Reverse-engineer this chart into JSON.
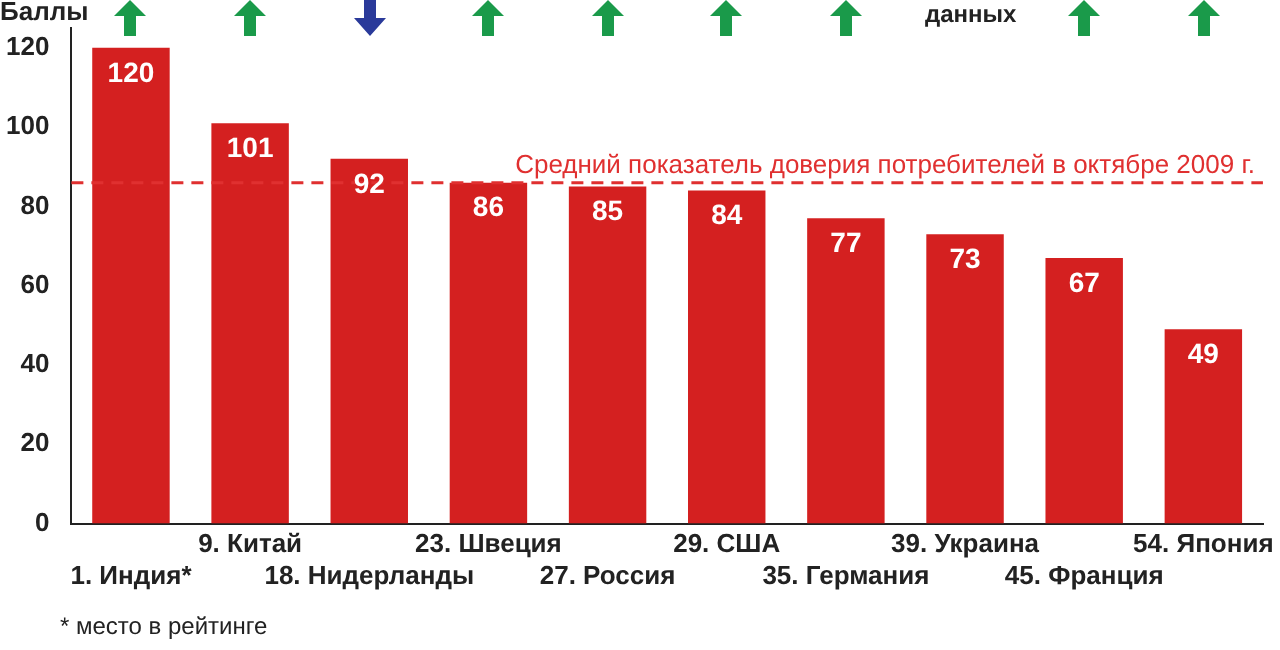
{
  "chart_data": {
    "type": "bar",
    "ylabel": "Баллы",
    "categories": [
      "1. Индия*",
      "9. Китай",
      "18. Нидерланды",
      "23. Швеция",
      "27. Россия",
      "29. США",
      "35. Германия",
      "39. Украина",
      "45. Франция",
      "54. Япония"
    ],
    "values": [
      120,
      101,
      92,
      86,
      85,
      84,
      77,
      73,
      67,
      49
    ],
    "color": "#d42020",
    "ylim": [
      0,
      125
    ],
    "yticks": [
      0,
      20,
      40,
      60,
      80,
      100,
      120
    ],
    "grid": false,
    "legend": false,
    "data_labels": true,
    "ref_lines": [
      {
        "axis": "y",
        "value": 86,
        "label": "Средний показатель доверия потребителей в октябре 2009 г.",
        "color": "#e03030",
        "line_style": "dashed"
      }
    ],
    "annotations": [
      "данных",
      "* место в рейтинге"
    ]
  }
}
